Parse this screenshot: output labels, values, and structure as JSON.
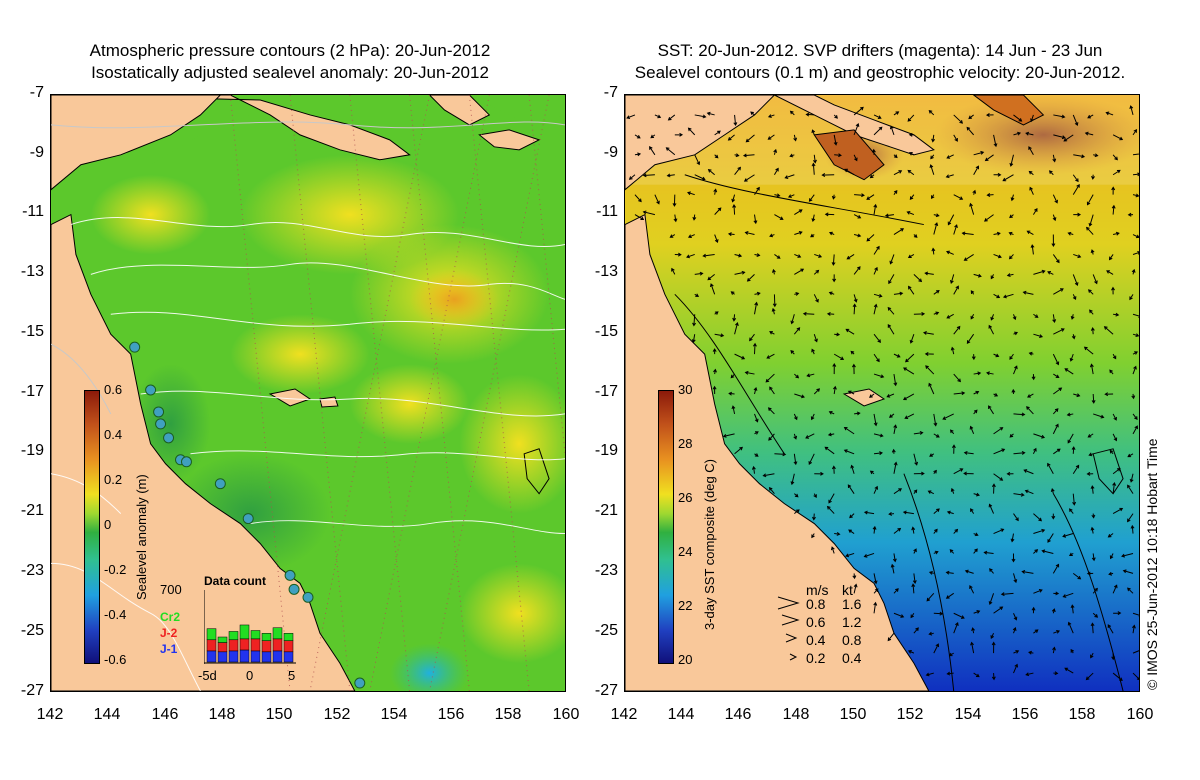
{
  "left_panel": {
    "title_line1": "Atmospheric pressure contours (2 hPa): 20-Jun-2012",
    "title_line2": "Isostatically adjusted sealevel anomaly: 20-Jun-2012",
    "colorbar": {
      "label": "Sealevel anomaly (m)",
      "ticks": [
        "0.6",
        "0.4",
        "0.2",
        "0",
        "-0.2",
        "-0.4",
        "-0.6"
      ],
      "range": [
        -0.6,
        0.6
      ]
    },
    "data_count": {
      "title": "Data count",
      "max_label": "700",
      "legend": [
        {
          "name": "Cr2",
          "color": "#22dd22"
        },
        {
          "name": "J-2",
          "color": "#ee2222"
        },
        {
          "name": "J-1",
          "color": "#2233ee"
        }
      ],
      "x_ticks": [
        "-5d",
        "0",
        "5"
      ],
      "bars": [
        {
          "j1": 120,
          "j2": 120,
          "cr2": 120
        },
        {
          "j1": 110,
          "j2": 100,
          "cr2": 60
        },
        {
          "j1": 120,
          "j2": 120,
          "cr2": 90
        },
        {
          "j1": 130,
          "j2": 120,
          "cr2": 150
        },
        {
          "j1": 120,
          "j2": 130,
          "cr2": 90
        },
        {
          "j1": 110,
          "j2": 120,
          "cr2": 80
        },
        {
          "j1": 120,
          "j2": 130,
          "cr2": 120
        },
        {
          "j1": 110,
          "j2": 120,
          "cr2": 80
        }
      ]
    }
  },
  "right_panel": {
    "title_line1": "SST: 20-Jun-2012. SVP drifters (magenta): 14 Jun - 23 Jun",
    "title_line2": "Sealevel contours (0.1 m) and geostrophic velocity: 20-Jun-2012.",
    "colorbar": {
      "label": "3-day SST composite (deg C)",
      "ticks": [
        "30",
        "28",
        "26",
        "24",
        "22",
        "20"
      ],
      "range": [
        20,
        30
      ]
    },
    "velocity_legend": {
      "header_ms": "m/s",
      "header_kt": "kt",
      "rows": [
        {
          "ms": "0.8",
          "kt": "1.6"
        },
        {
          "ms": "0.6",
          "kt": "1.2"
        },
        {
          "ms": "0.4",
          "kt": "0.8"
        },
        {
          "ms": "0.2",
          "kt": "0.4"
        }
      ]
    },
    "credit": "© IMOS 25-Jun-2012 10:18 Hobart Time"
  },
  "axes": {
    "y_ticks": [
      "-7",
      "-9",
      "-11",
      "-13",
      "-15",
      "-17",
      "-19",
      "-21",
      "-23",
      "-25",
      "-27"
    ],
    "x_ticks": [
      "142",
      "144",
      "146",
      "148",
      "150",
      "152",
      "154",
      "156",
      "158",
      "160"
    ],
    "lat_range": [
      -27,
      -7
    ],
    "lon_range": [
      142,
      160
    ]
  },
  "colors": {
    "land": "#f9c89a",
    "coast": "#000000"
  }
}
